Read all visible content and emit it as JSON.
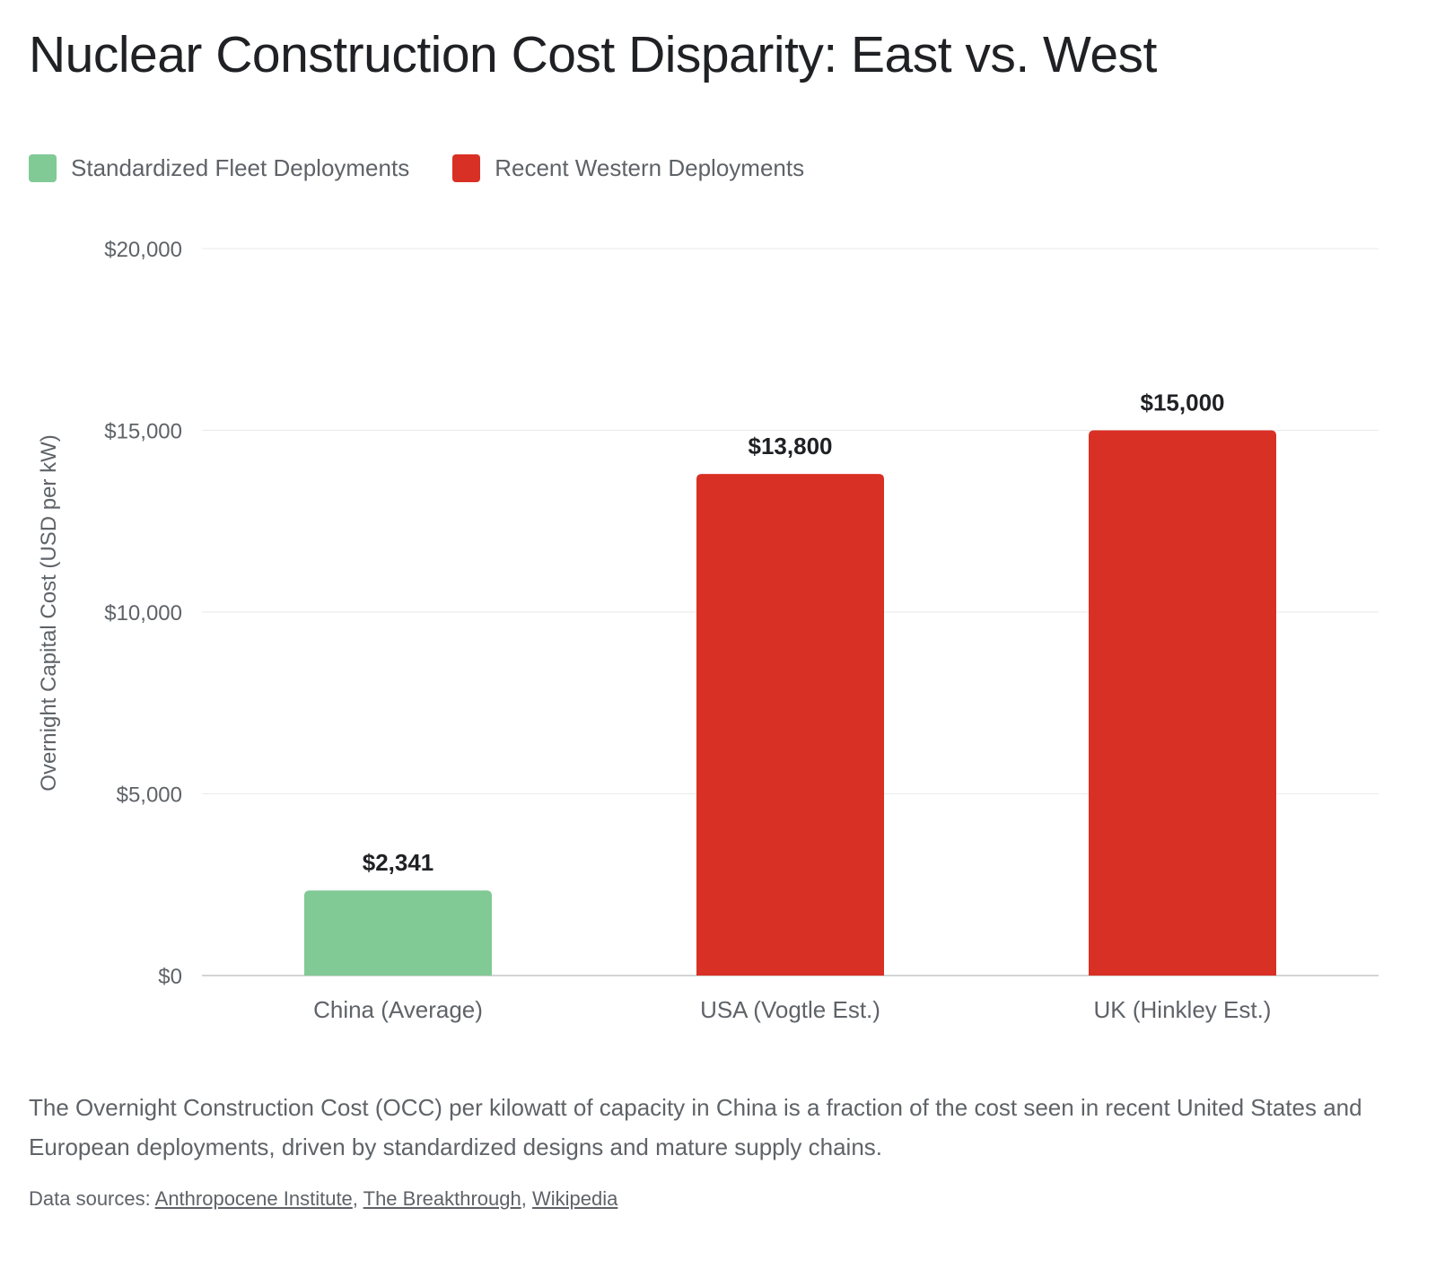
{
  "title": "Nuclear Construction Cost Disparity: East vs. West",
  "legend": [
    {
      "label": "Standardized Fleet Deployments",
      "color": "#81c995"
    },
    {
      "label": "Recent Western Deployments",
      "color": "#d93025"
    }
  ],
  "chart_data": {
    "type": "bar",
    "title": "Nuclear Construction Cost Disparity: East vs. West",
    "xlabel": "",
    "ylabel": "Overnight Capital Cost (USD per kW)",
    "ylim": [
      0,
      20000
    ],
    "yticks": [
      0,
      5000,
      10000,
      15000,
      20000
    ],
    "ytick_labels": [
      "$0",
      "$5,000",
      "$10,000",
      "$15,000",
      "$20,000"
    ],
    "grid": true,
    "legend_position": "top-left",
    "categories": [
      "China (Average)",
      "USA (Vogtle Est.)",
      "UK (Hinkley Est.)"
    ],
    "values": [
      2341,
      13800,
      15000
    ],
    "data_labels": [
      "$2,341",
      "$13,800",
      "$15,000"
    ],
    "bar_series": [
      "Standardized Fleet Deployments",
      "Recent Western Deployments",
      "Recent Western Deployments"
    ],
    "bar_colors": [
      "#81c995",
      "#d93025",
      "#d93025"
    ]
  },
  "caption": "The Overnight Construction Cost (OCC) per kilowatt of capacity in China is a fraction of the cost seen in recent United States and European deployments, driven by standardized designs and mature supply chains.",
  "sources": {
    "prefix": "Data sources: ",
    "links": [
      "Anthropocene Institute",
      "The Breakthrough",
      "Wikipedia"
    ],
    "separator": ", "
  }
}
